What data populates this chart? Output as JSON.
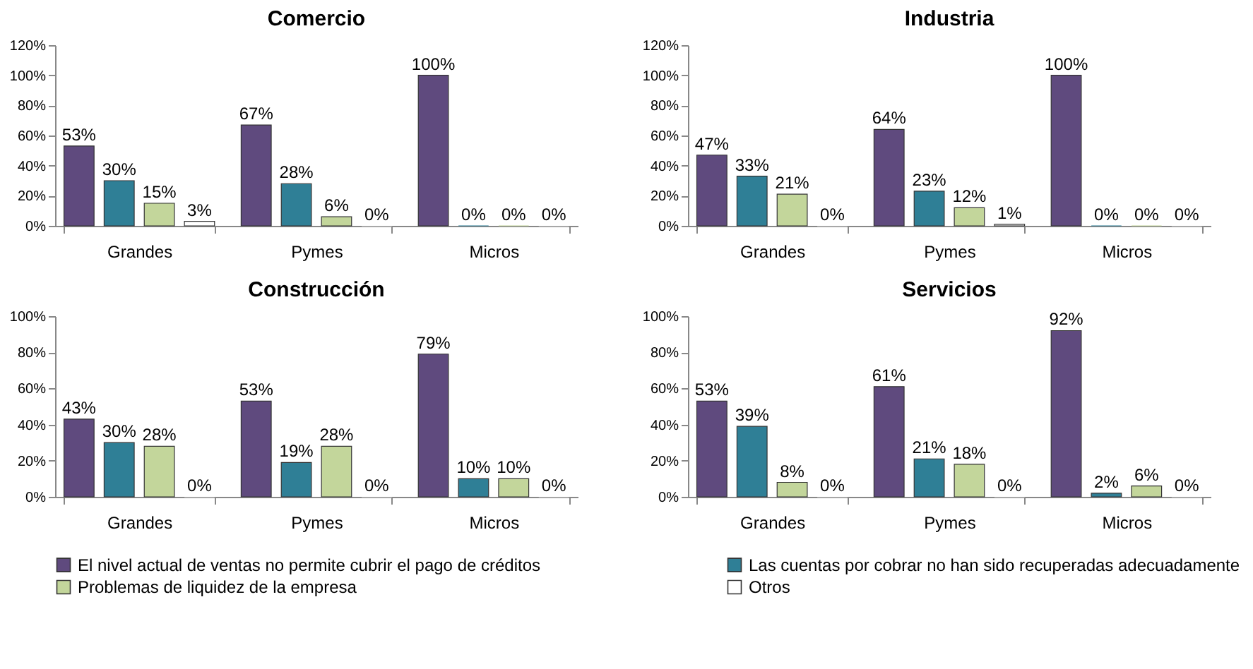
{
  "chart_data": [
    {
      "type": "bar",
      "title": "Comercio",
      "categories": [
        "Grandes",
        "Pymes",
        "Micros"
      ],
      "ylim": [
        0,
        120
      ],
      "yticks": [
        {
          "value": 0,
          "label": "0%"
        },
        {
          "value": 20,
          "label": "20%"
        },
        {
          "value": 40,
          "label": "40%"
        },
        {
          "value": 60,
          "label": "60%"
        },
        {
          "value": 80,
          "label": "80%"
        },
        {
          "value": 100,
          "label": "100%"
        },
        {
          "value": 120,
          "label": "120%"
        }
      ],
      "legend": "bottom",
      "series": [
        {
          "name": "El nivel actual de ventas no permite cubrir el pago de créditos",
          "color": "#5f4a7e",
          "values": [
            53,
            67,
            100
          ],
          "value_labels": [
            "53%",
            "67%",
            "100%"
          ]
        },
        {
          "name": "Las cuentas por cobrar no han sido recuperadas adecuadamente",
          "color": "#2f7f96",
          "values": [
            30,
            28,
            0
          ],
          "value_labels": [
            "30%",
            "28%",
            "0%"
          ]
        },
        {
          "name": "Problemas de liquidez de la empresa",
          "color": "#c3d69b",
          "values": [
            15,
            6,
            0
          ],
          "value_labels": [
            "15%",
            "6%",
            "0%"
          ]
        },
        {
          "name": "Otros",
          "color": "#ffffff",
          "values": [
            3,
            0,
            0
          ],
          "value_labels": [
            "3%",
            "0%",
            "0%"
          ]
        }
      ]
    },
    {
      "type": "bar",
      "title": "Industria",
      "categories": [
        "Grandes",
        "Pymes",
        "Micros"
      ],
      "ylim": [
        0,
        120
      ],
      "yticks": [
        {
          "value": 0,
          "label": "0%"
        },
        {
          "value": 20,
          "label": "20%"
        },
        {
          "value": 40,
          "label": "40%"
        },
        {
          "value": 60,
          "label": "60%"
        },
        {
          "value": 80,
          "label": "80%"
        },
        {
          "value": 100,
          "label": "100%"
        },
        {
          "value": 120,
          "label": "120%"
        }
      ],
      "legend": "bottom",
      "series": [
        {
          "name": "El nivel actual de ventas no permite cubrir el pago de créditos",
          "color": "#5f4a7e",
          "values": [
            47,
            64,
            100
          ],
          "value_labels": [
            "47%",
            "64%",
            "100%"
          ]
        },
        {
          "name": "Las cuentas por cobrar no han sido recuperadas adecuadamente",
          "color": "#2f7f96",
          "values": [
            33,
            23,
            0
          ],
          "value_labels": [
            "33%",
            "23%",
            "0%"
          ]
        },
        {
          "name": "Problemas de liquidez de la empresa",
          "color": "#c3d69b",
          "values": [
            21,
            12,
            0
          ],
          "value_labels": [
            "21%",
            "12%",
            "0%"
          ]
        },
        {
          "name": "Otros",
          "color": "#ffffff",
          "values": [
            0,
            1,
            0
          ],
          "value_labels": [
            "0%",
            "1%",
            "0%"
          ]
        }
      ]
    },
    {
      "type": "bar",
      "title": "Construcción",
      "categories": [
        "Grandes",
        "Pymes",
        "Micros"
      ],
      "ylim": [
        0,
        100
      ],
      "yticks": [
        {
          "value": 0,
          "label": "0%"
        },
        {
          "value": 20,
          "label": "20%"
        },
        {
          "value": 40,
          "label": "40%"
        },
        {
          "value": 60,
          "label": "60%"
        },
        {
          "value": 80,
          "label": "80%"
        },
        {
          "value": 100,
          "label": "100%"
        }
      ],
      "legend": "bottom",
      "series": [
        {
          "name": "El nivel actual de ventas no permite cubrir el pago de créditos",
          "color": "#5f4a7e",
          "values": [
            43,
            53,
            79
          ],
          "value_labels": [
            "43%",
            "53%",
            "79%"
          ]
        },
        {
          "name": "Las cuentas por cobrar no han sido recuperadas adecuadamente",
          "color": "#2f7f96",
          "values": [
            30,
            19,
            10
          ],
          "value_labels": [
            "30%",
            "19%",
            "10%"
          ]
        },
        {
          "name": "Problemas de liquidez de la empresa",
          "color": "#c3d69b",
          "values": [
            28,
            28,
            10
          ],
          "value_labels": [
            "28%",
            "28%",
            "10%"
          ]
        },
        {
          "name": "Otros",
          "color": "#ffffff",
          "values": [
            0,
            0,
            0
          ],
          "value_labels": [
            "0%",
            "0%",
            "0%"
          ]
        }
      ]
    },
    {
      "type": "bar",
      "title": "Servicios",
      "categories": [
        "Grandes",
        "Pymes",
        "Micros"
      ],
      "ylim": [
        0,
        100
      ],
      "yticks": [
        {
          "value": 0,
          "label": "0%"
        },
        {
          "value": 20,
          "label": "20%"
        },
        {
          "value": 40,
          "label": "40%"
        },
        {
          "value": 60,
          "label": "60%"
        },
        {
          "value": 80,
          "label": "80%"
        },
        {
          "value": 100,
          "label": "100%"
        }
      ],
      "legend": "bottom",
      "series": [
        {
          "name": "El nivel actual de ventas no permite cubrir el pago de créditos",
          "color": "#5f4a7e",
          "values": [
            53,
            61,
            92
          ],
          "value_labels": [
            "53%",
            "61%",
            "92%"
          ]
        },
        {
          "name": "Las cuentas por cobrar no han sido recuperadas adecuadamente",
          "color": "#2f7f96",
          "values": [
            39,
            21,
            2
          ],
          "value_labels": [
            "39%",
            "21%",
            "2%"
          ]
        },
        {
          "name": "Problemas de liquidez de la empresa",
          "color": "#c3d69b",
          "values": [
            8,
            18,
            6
          ],
          "value_labels": [
            "8%",
            "18%",
            "6%"
          ]
        },
        {
          "name": "Otros",
          "color": "#ffffff",
          "values": [
            0,
            0,
            0
          ],
          "value_labels": [
            "0%",
            "0%",
            "0%"
          ]
        }
      ]
    }
  ]
}
